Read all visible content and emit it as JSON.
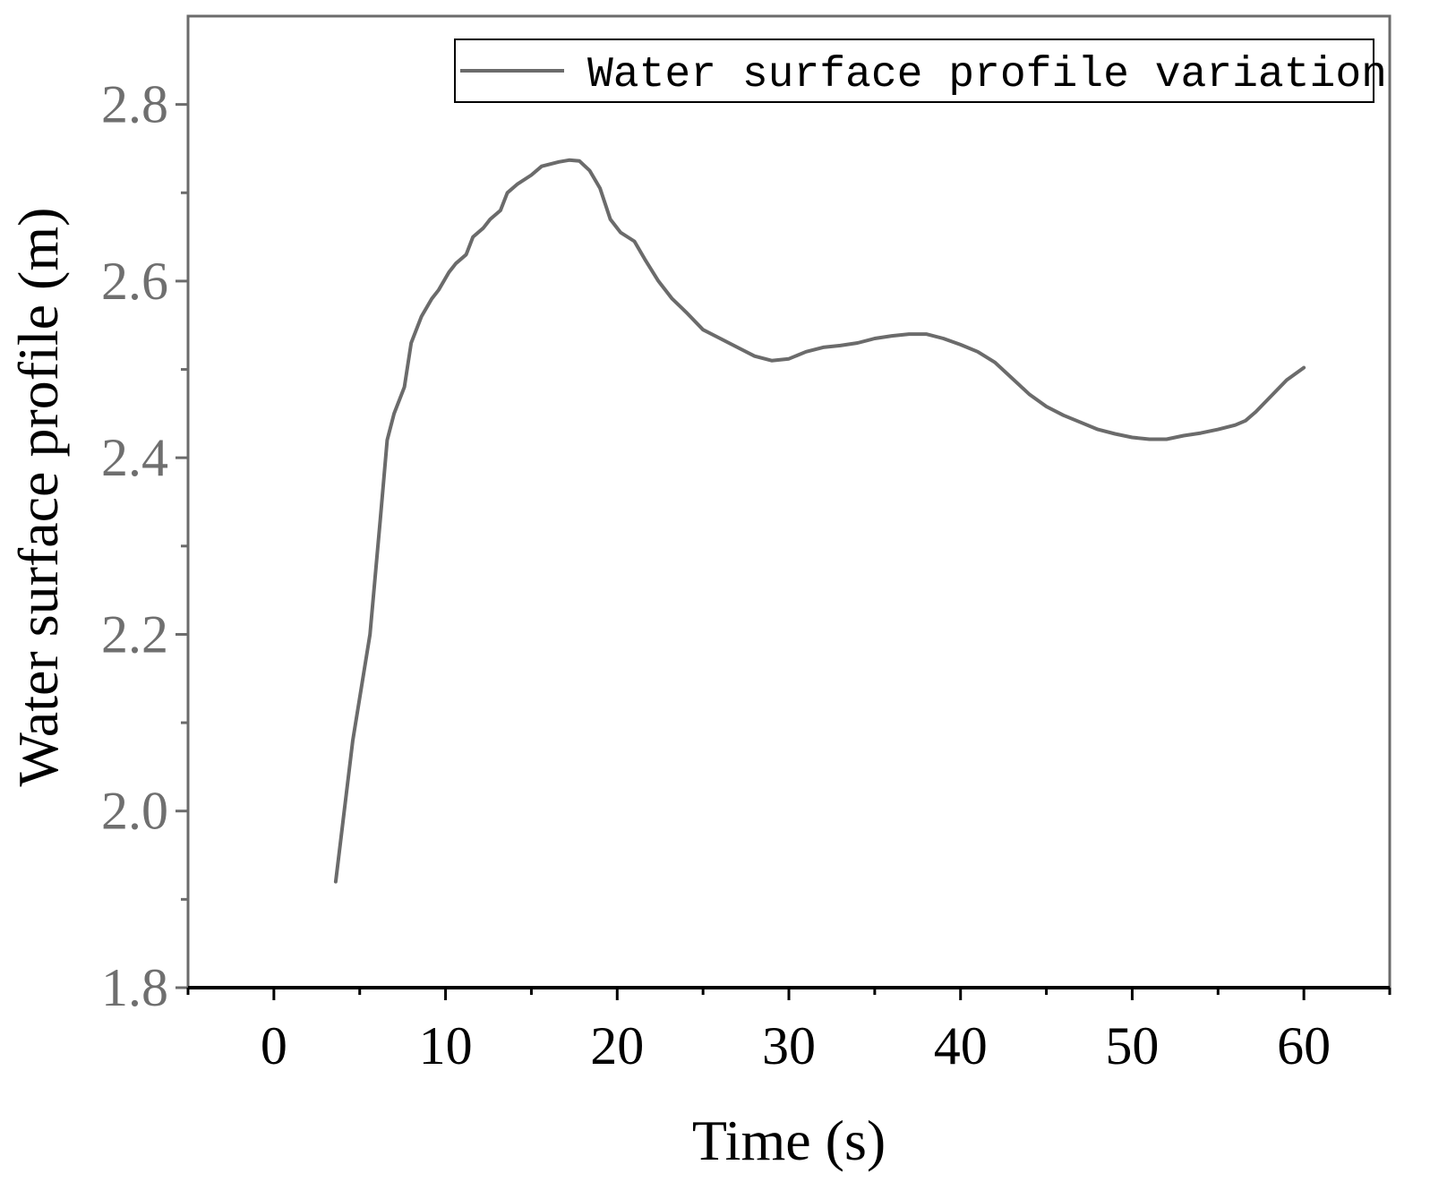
{
  "chart_data": {
    "type": "line",
    "xlabel": "Time (s)",
    "ylabel": "Water surface profile (m)",
    "xlim": [
      -5,
      65
    ],
    "ylim": [
      1.8,
      2.9
    ],
    "x_ticks": [
      0,
      10,
      20,
      30,
      40,
      50,
      60
    ],
    "y_ticks": [
      1.8,
      2.0,
      2.2,
      2.4,
      2.6,
      2.8
    ],
    "grid": false,
    "legend_position": "top-right",
    "colors": {
      "line": "#6b6b6b",
      "axis": "#6b6b6b"
    },
    "series": [
      {
        "name": "Water surface profile variation",
        "x": [
          3.6,
          4.6,
          5.6,
          6.2,
          6.6,
          7.0,
          7.6,
          8.0,
          8.6,
          9.2,
          9.6,
          10.2,
          10.6,
          11.2,
          11.6,
          12.2,
          12.6,
          13.2,
          13.6,
          14.2,
          15.0,
          15.6,
          16.6,
          17.2,
          17.8,
          18.4,
          19.0,
          19.6,
          20.2,
          21.0,
          21.6,
          22.4,
          23.2,
          24.0,
          25.0,
          26.0,
          27.0,
          28.0,
          29.0,
          30.0,
          31.0,
          32.0,
          33.0,
          34.0,
          35.0,
          36.0,
          37.0,
          38.0,
          39.0,
          40.0,
          41.0,
          42.0,
          43.0,
          44.0,
          45.0,
          46.0,
          47.0,
          48.0,
          49.0,
          50.0,
          51.0,
          52.0,
          53.0,
          54.0,
          55.0,
          56.0,
          56.6,
          57.2,
          58.0,
          59.0,
          60.0
        ],
        "y": [
          1.92,
          2.08,
          2.2,
          2.33,
          2.42,
          2.45,
          2.48,
          2.53,
          2.56,
          2.58,
          2.59,
          2.61,
          2.62,
          2.63,
          2.65,
          2.66,
          2.67,
          2.68,
          2.7,
          2.71,
          2.72,
          2.73,
          2.735,
          2.737,
          2.736,
          2.725,
          2.705,
          2.67,
          2.655,
          2.645,
          2.625,
          2.6,
          2.58,
          2.565,
          2.545,
          2.535,
          2.525,
          2.515,
          2.51,
          2.512,
          2.52,
          2.525,
          2.527,
          2.53,
          2.535,
          2.538,
          2.54,
          2.54,
          2.535,
          2.528,
          2.52,
          2.508,
          2.49,
          2.472,
          2.458,
          2.448,
          2.44,
          2.432,
          2.427,
          2.423,
          2.421,
          2.421,
          2.425,
          2.428,
          2.432,
          2.437,
          2.442,
          2.452,
          2.468,
          2.488,
          2.502
        ]
      }
    ]
  }
}
